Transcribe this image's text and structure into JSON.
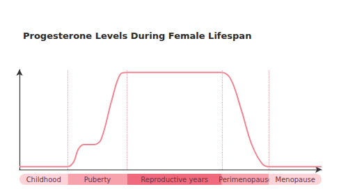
{
  "chart_data": {
    "type": "line",
    "title": "Progesterone Levels During Female Lifespan",
    "x": [
      0,
      16,
      18,
      19.4,
      21.3,
      24.8,
      27,
      30.6,
      33.3,
      35.6,
      67,
      70,
      73.4,
      76.9,
      80.3,
      82.6,
      100
    ],
    "values": [
      3,
      3,
      8,
      20,
      25,
      25,
      30,
      70,
      95,
      97,
      97,
      90,
      60,
      25,
      6,
      3,
      3
    ],
    "color": "#f08592",
    "xlim": [
      0,
      100
    ],
    "ylim": [
      0,
      100
    ],
    "tick_labels": false,
    "grid": false,
    "phases": [
      {
        "label": "Childhood",
        "start": 0,
        "end": 16,
        "color": "#fbd3d8"
      },
      {
        "label": "Puberty",
        "start": 16,
        "end": 35.6,
        "color": "#f6a3ae"
      },
      {
        "label": "Reproductive years",
        "start": 35.6,
        "end": 67,
        "color": "#f06a7e"
      },
      {
        "label": "Perimenopause",
        "start": 67,
        "end": 82.6,
        "color": "#f6a3ae"
      },
      {
        "label": "Menopause",
        "start": 82.6,
        "end": 100,
        "color": "#fbd3d8"
      }
    ]
  }
}
